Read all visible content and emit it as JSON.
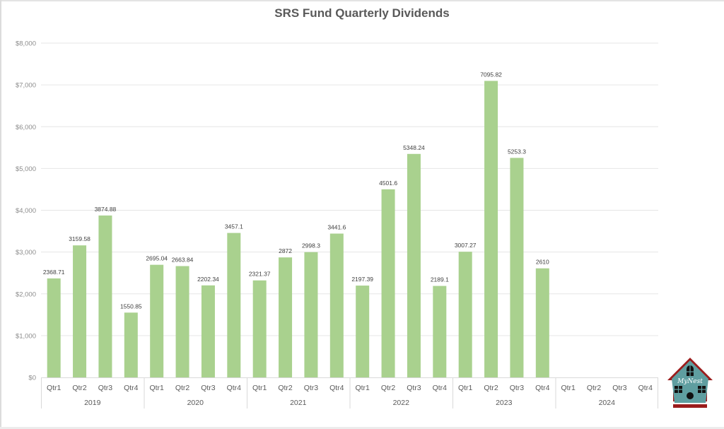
{
  "chart_data": {
    "type": "bar",
    "title": "SRS Fund Quarterly Dividends",
    "xlabel": "",
    "ylabel": "",
    "ylim": [
      0,
      8000
    ],
    "y_ticks": [
      0,
      1000,
      2000,
      3000,
      4000,
      5000,
      6000,
      7000,
      8000
    ],
    "y_tick_labels": [
      "$0",
      "$1,000",
      "$2,000",
      "$3,000",
      "$4,000",
      "$5,000",
      "$6,000",
      "$7,000",
      "$8,000"
    ],
    "grid": true,
    "legend": "none",
    "bar_color": "#a9d18e",
    "groups": [
      {
        "year": "2019",
        "quarters": [
          "Qtr1",
          "Qtr2",
          "Qtr3",
          "Qtr4"
        ],
        "values": [
          2368.71,
          3159.58,
          3874.88,
          1550.85
        ],
        "labels": [
          "2368.71",
          "3159.58",
          "3874.88",
          "1550.85"
        ]
      },
      {
        "year": "2020",
        "quarters": [
          "Qtr1",
          "Qtr2",
          "Qtr3",
          "Qtr4"
        ],
        "values": [
          2695.04,
          2663.84,
          2202.34,
          3457.1
        ],
        "labels": [
          "2695.04",
          "2663.84",
          "2202.34",
          "3457.1"
        ]
      },
      {
        "year": "2021",
        "quarters": [
          "Qtr1",
          "Qtr2",
          "Qtr3",
          "Qtr4"
        ],
        "values": [
          2321.37,
          2872,
          2998.3,
          3441.6
        ],
        "labels": [
          "2321.37",
          "2872",
          "2998.3",
          "3441.6"
        ]
      },
      {
        "year": "2022",
        "quarters": [
          "Qtr1",
          "Qtr2",
          "Qtr3",
          "Qtr4"
        ],
        "values": [
          2197.39,
          4501.6,
          5348.24,
          2189.1
        ],
        "labels": [
          "2197.39",
          "4501.6",
          "5348.24",
          "2189.1"
        ]
      },
      {
        "year": "2023",
        "quarters": [
          "Qtr1",
          "Qtr2",
          "Qtr3",
          "Qtr4"
        ],
        "values": [
          3007.27,
          7095.82,
          5253.3,
          2610
        ],
        "labels": [
          "3007.27",
          "7095.82",
          "5253.3",
          "2610"
        ]
      },
      {
        "year": "2024",
        "quarters": [
          "Qtr1",
          "Qtr2",
          "Qtr3",
          "Qtr4"
        ],
        "values": [
          null,
          null,
          null,
          null
        ],
        "labels": [
          "",
          "",
          "",
          ""
        ]
      }
    ]
  },
  "logo": {
    "text": "MyNest",
    "icon": "birdhouse-icon",
    "body_color": "#5f9ea0",
    "roof_color": "#9b1c1c"
  }
}
